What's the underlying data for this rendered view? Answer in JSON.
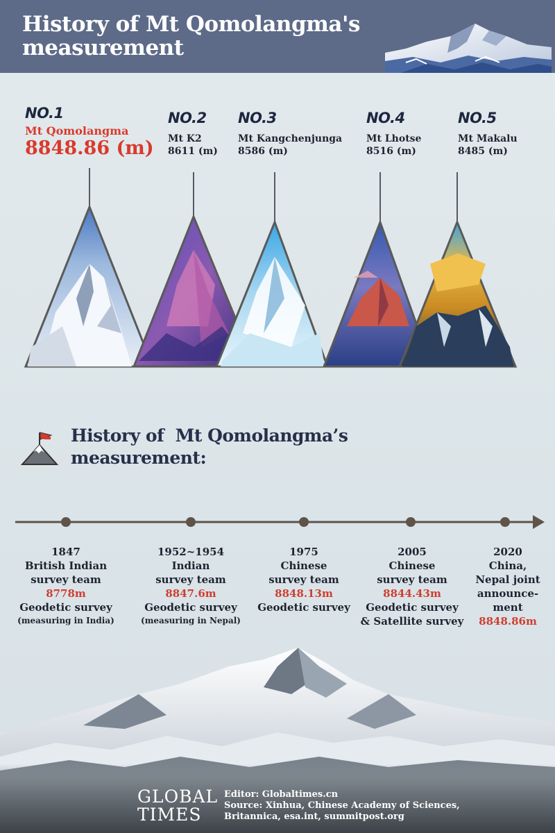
{
  "header": {
    "title_line1": "History of Mt Qomolangma's",
    "title_line2": "measurement"
  },
  "peaks": [
    {
      "rank": "NO.1",
      "name": "Mt Qomolangma",
      "height": "8848.86 (m)"
    },
    {
      "rank": "NO.2",
      "name": "Mt K2",
      "height": "8611 (m)"
    },
    {
      "rank": "NO.3",
      "name": "Mt Kangchenjunga",
      "height": "8586 (m)"
    },
    {
      "rank": "NO.4",
      "name": "Mt Lhotse",
      "height": "8516 (m)"
    },
    {
      "rank": "NO.5",
      "name": "Mt Makalu",
      "height": "8485 (m)"
    }
  ],
  "section": {
    "title_line1": "History of  Mt Qomolangma’s",
    "title_line2": "measurement:"
  },
  "timeline": [
    {
      "year": "1847",
      "team": [
        "British Indian",
        "survey team"
      ],
      "value": "8778m",
      "method": "Geodetic survey",
      "note": "(measuring in India)"
    },
    {
      "year": "1952~1954",
      "team": [
        "Indian",
        "survey team"
      ],
      "value": "8847.6m",
      "method": "Geodetic survey",
      "note": "(measuring in Nepal)"
    },
    {
      "year": "1975",
      "team": [
        "Chinese",
        "survey team"
      ],
      "value": "8848.13m",
      "method": "Geodetic survey",
      "note": ""
    },
    {
      "year": "2005",
      "team": [
        "Chinese",
        "survey team"
      ],
      "value": "8844.43m",
      "method": "Geodetic survey",
      "method2": "& Satellite survey"
    },
    {
      "year": "2020",
      "team": [
        "China,",
        "Nepal joint",
        "announce-",
        "ment"
      ],
      "value": "8848.86m"
    }
  ],
  "footer": {
    "logo_line1": "GLOBAL",
    "logo_line2": "TIMES",
    "editor": "Editor: Globaltimes.cn",
    "source_line1": "Source: Xinhua, Chinese Academy of Sciences,",
    "source_line2": "Britannica, esa.int, summitpost.org"
  },
  "colors": {
    "header_bg": "#5d6b88",
    "accent_red": "#d93a2b",
    "text_dark": "#1f2230",
    "background": "#dde5e9"
  },
  "icons": [
    "mountain-flag-icon",
    "timeline-arrow-icon"
  ]
}
